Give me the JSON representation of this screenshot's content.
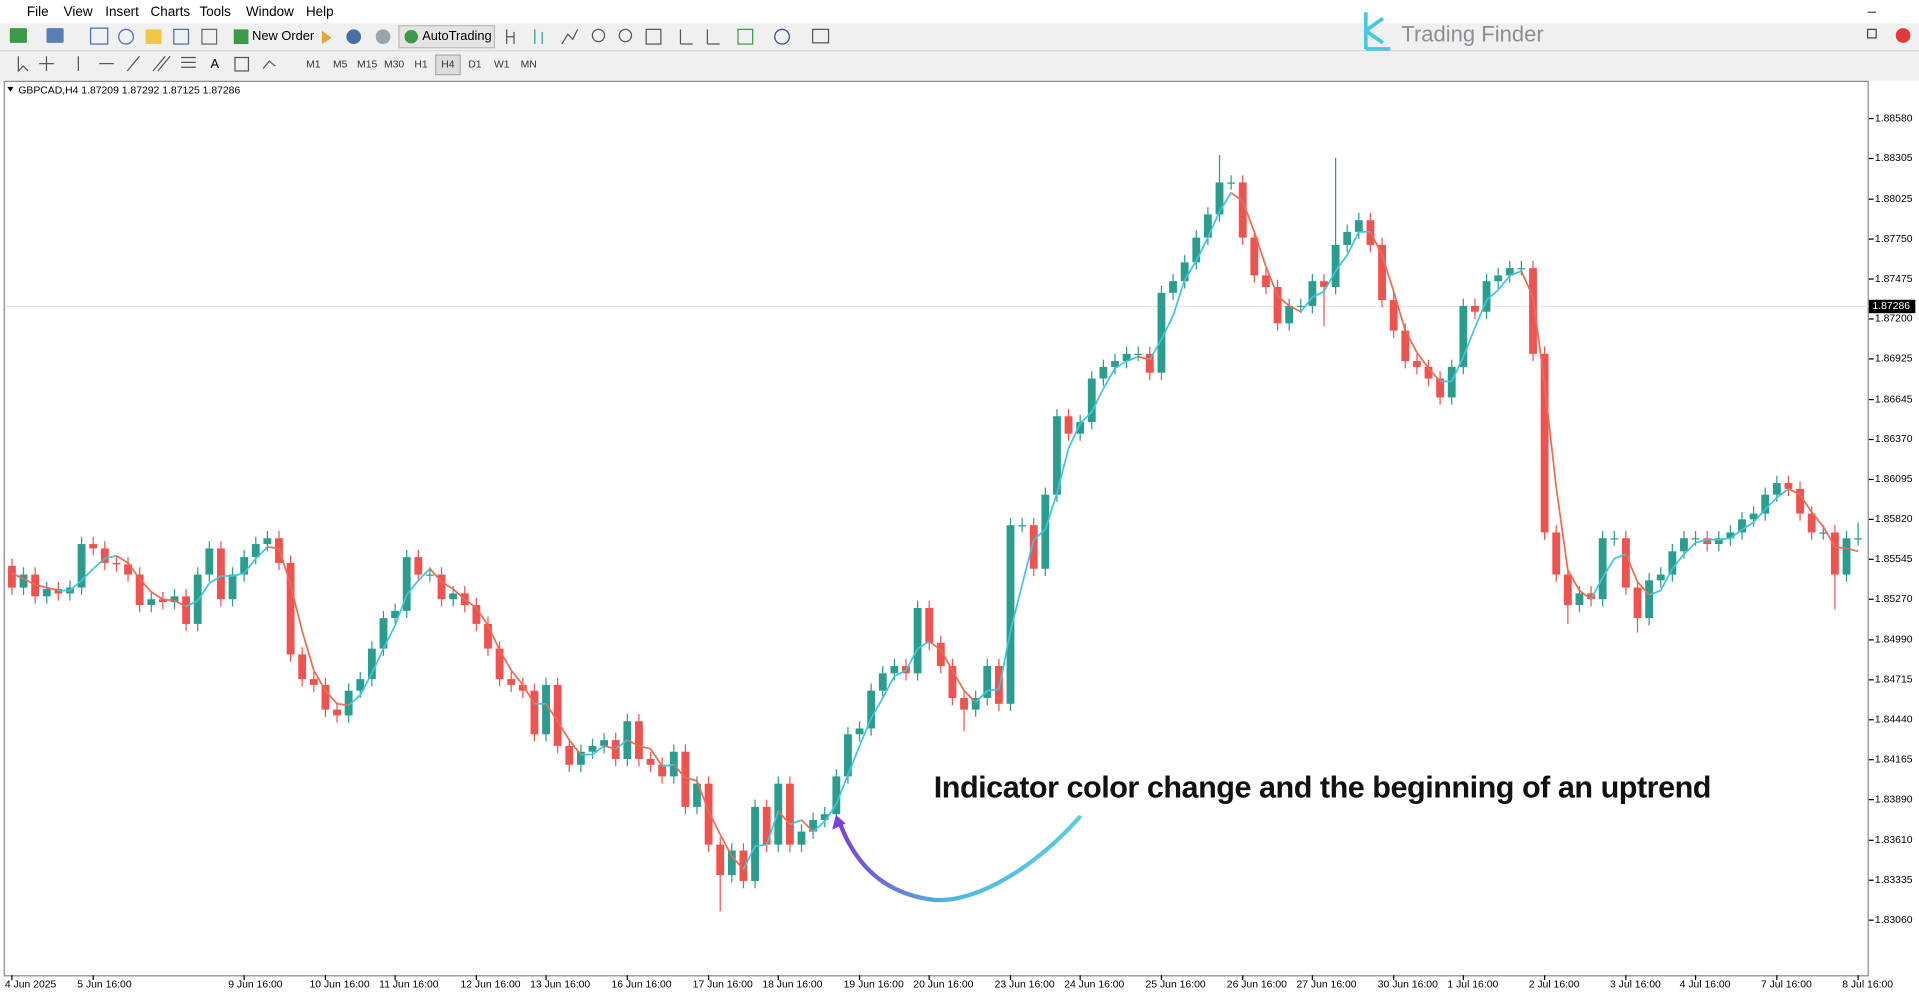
{
  "ui": {
    "menu": [
      "File",
      "View",
      "Insert",
      "Charts",
      "Tools",
      "Window",
      "Help"
    ],
    "new_order": "New Order",
    "auto_trading": "AutoTrading",
    "timeframes": [
      "M1",
      "M5",
      "M15",
      "M30",
      "H1",
      "H4",
      "D1",
      "W1",
      "MN"
    ],
    "logo": "Trading Finder"
  },
  "chart_data": {
    "type": "candlestick",
    "symbol": "GBPCAD,H4",
    "quote": {
      "open": 1.87209,
      "high": 1.87292,
      "low": 1.87125,
      "close": 1.87286
    },
    "annotation": "Indicator color change and the beginning of an uptrend",
    "up_color": "#2a9d8f",
    "down_color": "#ef5350",
    "grid": false,
    "ylim": [
      1.82681,
      1.88832
    ],
    "yticks": [
      {
        "value": 1.8858,
        "label": "1.88580"
      },
      {
        "value": 1.88305,
        "label": "1.88305"
      },
      {
        "value": 1.88025,
        "label": "1.88025"
      },
      {
        "value": 1.8775,
        "label": "1.87750"
      },
      {
        "value": 1.87475,
        "label": "1.87475"
      },
      {
        "value": 1.872,
        "label": "1.87200"
      },
      {
        "value": 1.86925,
        "label": "1.86925"
      },
      {
        "value": 1.86645,
        "label": "1.86645"
      },
      {
        "value": 1.8637,
        "label": "1.86370"
      },
      {
        "value": 1.86095,
        "label": "1.86095"
      },
      {
        "value": 1.8582,
        "label": "1.85820"
      },
      {
        "value": 1.85545,
        "label": "1.85545"
      },
      {
        "value": 1.8527,
        "label": "1.85270"
      },
      {
        "value": 1.8499,
        "label": "1.84990"
      },
      {
        "value": 1.84715,
        "label": "1.84715"
      },
      {
        "value": 1.8444,
        "label": "1.84440"
      },
      {
        "value": 1.84165,
        "label": "1.84165"
      },
      {
        "value": 1.8389,
        "label": "1.83890"
      },
      {
        "value": 1.8361,
        "label": "1.83610"
      },
      {
        "value": 1.83335,
        "label": "1.83335"
      },
      {
        "value": 1.8306,
        "label": "1.83060"
      }
    ],
    "categories": [
      "4 Jun 2025",
      null,
      null,
      null,
      null,
      null,
      null,
      "5 Jun 16:00",
      null,
      null,
      null,
      null,
      null,
      null,
      null,
      null,
      null,
      null,
      null,
      null,
      "9 Jun 16:00",
      null,
      null,
      null,
      null,
      null,
      null,
      "10 Jun 16:00",
      null,
      null,
      null,
      null,
      null,
      "11 Jun 16:00",
      null,
      null,
      null,
      null,
      null,
      null,
      "12 Jun 16:00",
      null,
      null,
      null,
      null,
      null,
      "13 Jun 16:00",
      null,
      null,
      null,
      null,
      null,
      null,
      "16 Jun 16:00",
      null,
      null,
      null,
      null,
      null,
      null,
      "17 Jun 16:00",
      null,
      null,
      null,
      null,
      null,
      "18 Jun 16:00",
      null,
      null,
      null,
      null,
      null,
      null,
      "19 Jun 16:00",
      null,
      null,
      null,
      null,
      null,
      "20 Jun 16:00",
      null,
      null,
      null,
      null,
      null,
      null,
      "23 Jun 16:00",
      null,
      null,
      null,
      null,
      null,
      "24 Jun 16:00",
      null,
      null,
      null,
      null,
      null,
      null,
      "25 Jun 16:00",
      null,
      null,
      null,
      null,
      null,
      null,
      "26 Jun 16:00",
      null,
      null,
      null,
      null,
      null,
      "27 Jun 16:00",
      null,
      null,
      null,
      null,
      null,
      null,
      "30 Jun 16:00",
      null,
      null,
      null,
      null,
      null,
      "1 Jul 16:00",
      null,
      null,
      null,
      null,
      null,
      null,
      "2 Jul 16:00",
      null,
      null,
      null,
      null,
      null,
      null,
      "3 Jul 16:00",
      null,
      null,
      null,
      null,
      null,
      "4 Jul 16:00",
      null,
      null,
      null,
      null,
      null,
      null,
      "7 Jul 16:00",
      null,
      null,
      null,
      null,
      null,
      null,
      "8 Jul 16:00"
    ],
    "open": [
      1.855,
      1.8535,
      1.8544,
      1.8529,
      1.8534,
      1.8531,
      1.8535,
      1.8565,
      1.8562,
      1.8552,
      1.8551,
      1.8544,
      1.8523,
      1.8527,
      1.8525,
      1.8529,
      1.851,
      1.8544,
      1.8562,
      1.8527,
      1.8544,
      1.8556,
      1.8565,
      1.8569,
      1.8552,
      1.8489,
      1.8472,
      1.8468,
      1.8451,
      1.8447,
      1.8464,
      1.8472,
      1.8493,
      1.8514,
      1.8519,
      1.8556,
      1.8544,
      1.8544,
      1.8527,
      1.8531,
      1.8523,
      1.851,
      1.8493,
      1.8472,
      1.8468,
      1.8464,
      1.8434,
      1.8468,
      1.8426,
      1.8413,
      1.8422,
      1.8426,
      1.843,
      1.8417,
      1.8443,
      1.8417,
      1.8413,
      1.8405,
      1.8422,
      1.8384,
      1.84,
      1.8358,
      1.8337,
      1.8354,
      1.8333,
      1.8384,
      1.8358,
      1.84,
      1.8358,
      1.8367,
      1.8375,
      1.8379,
      1.8405,
      1.8434,
      1.8438,
      1.8464,
      1.8476,
      1.8481,
      1.8476,
      1.8521,
      1.8497,
      1.8481,
      1.8459,
      1.8451,
      1.8459,
      1.8481,
      1.8455,
      1.8578,
      1.8578,
      1.8548,
      1.8599,
      1.8653,
      1.8641,
      1.8649,
      1.8679,
      1.8687,
      1.8691,
      1.8696,
      1.8696,
      1.8683,
      1.8738,
      1.8746,
      1.8759,
      1.8776,
      1.8792,
      1.8814,
      1.8814,
      1.8776,
      1.875,
      1.8742,
      1.8717,
      1.8729,
      1.8729,
      1.8746,
      1.8742,
      1.8771,
      1.878,
      1.8788,
      1.8771,
      1.8733,
      1.8712,
      1.8691,
      1.8687,
      1.8679,
      1.8666,
      1.8687,
      1.8729,
      1.8725,
      1.8746,
      1.875,
      1.8755,
      1.8755,
      1.8696,
      1.8573,
      1.8544,
      1.8523,
      1.8531,
      1.8527,
      1.8569,
      1.8569,
      1.8535,
      1.8514,
      1.854,
      1.8544,
      1.856,
      1.8569,
      1.8569,
      1.8565,
      1.8569,
      1.8573,
      1.8582,
      1.8586,
      1.8599,
      1.8607,
      1.8603,
      1.8586,
      1.8573,
      1.8573,
      1.8544,
      1.8569
    ],
    "high": [
      1.8555,
      1.8549,
      1.8549,
      1.8539,
      1.8539,
      1.854,
      1.857,
      1.857,
      1.8567,
      1.8557,
      1.8556,
      1.8549,
      1.8532,
      1.8532,
      1.8534,
      1.8534,
      1.8549,
      1.8567,
      1.8567,
      1.8549,
      1.8561,
      1.857,
      1.8574,
      1.8574,
      1.8557,
      1.8494,
      1.8477,
      1.8473,
      1.8456,
      1.8469,
      1.8477,
      1.8498,
      1.8519,
      1.8524,
      1.8561,
      1.8561,
      1.8549,
      1.8549,
      1.8536,
      1.8536,
      1.8528,
      1.8515,
      1.8498,
      1.8477,
      1.8473,
      1.8469,
      1.8473,
      1.8473,
      1.8431,
      1.8427,
      1.8431,
      1.8435,
      1.8435,
      1.8448,
      1.8448,
      1.8422,
      1.8418,
      1.8427,
      1.8427,
      1.8405,
      1.8405,
      1.8363,
      1.8359,
      1.8359,
      1.8389,
      1.8389,
      1.8405,
      1.8405,
      1.8372,
      1.838,
      1.8384,
      1.841,
      1.8439,
      1.8443,
      1.8469,
      1.8481,
      1.8486,
      1.8486,
      1.8526,
      1.8526,
      1.8502,
      1.8486,
      1.8464,
      1.8464,
      1.8486,
      1.8486,
      1.8583,
      1.8583,
      1.8583,
      1.8604,
      1.8658,
      1.8658,
      1.8654,
      1.8684,
      1.8692,
      1.8696,
      1.8701,
      1.8701,
      1.8701,
      1.8743,
      1.8751,
      1.8764,
      1.8781,
      1.8797,
      1.8833,
      1.8819,
      1.8819,
      1.8781,
      1.8755,
      1.8747,
      1.8734,
      1.8734,
      1.8751,
      1.8751,
      1.8831,
      1.8785,
      1.8793,
      1.8793,
      1.8776,
      1.8738,
      1.8717,
      1.8696,
      1.8692,
      1.8684,
      1.8692,
      1.8734,
      1.8734,
      1.8751,
      1.8755,
      1.876,
      1.876,
      1.876,
      1.8701,
      1.8578,
      1.8549,
      1.8536,
      1.8536,
      1.8574,
      1.8574,
      1.8574,
      1.854,
      1.8545,
      1.8549,
      1.8565,
      1.8574,
      1.8574,
      1.8574,
      1.8574,
      1.8578,
      1.8587,
      1.8591,
      1.8604,
      1.8612,
      1.8612,
      1.8608,
      1.8591,
      1.8578,
      1.8578,
      1.8574,
      1.858
    ],
    "low": [
      1.853,
      1.853,
      1.8524,
      1.8524,
      1.8526,
      1.8526,
      1.853,
      1.8557,
      1.8547,
      1.8546,
      1.8539,
      1.8518,
      1.8518,
      1.852,
      1.852,
      1.8505,
      1.8505,
      1.8539,
      1.8522,
      1.8522,
      1.8539,
      1.8551,
      1.856,
      1.8547,
      1.8484,
      1.8467,
      1.8463,
      1.8446,
      1.8442,
      1.8442,
      1.8459,
      1.8467,
      1.8488,
      1.8509,
      1.8514,
      1.8539,
      1.8539,
      1.8522,
      1.8522,
      1.8518,
      1.8505,
      1.8488,
      1.8467,
      1.8463,
      1.8459,
      1.8429,
      1.8429,
      1.8421,
      1.8408,
      1.8408,
      1.8417,
      1.8421,
      1.8412,
      1.8412,
      1.8412,
      1.8408,
      1.84,
      1.84,
      1.8379,
      1.8379,
      1.8353,
      1.8312,
      1.8332,
      1.8328,
      1.8328,
      1.8353,
      1.8353,
      1.8353,
      1.8353,
      1.8362,
      1.837,
      1.8374,
      1.84,
      1.8429,
      1.8433,
      1.8459,
      1.8471,
      1.8471,
      1.8471,
      1.8492,
      1.8476,
      1.8454,
      1.8436,
      1.8446,
      1.8454,
      1.845,
      1.845,
      1.8573,
      1.8543,
      1.8543,
      1.8594,
      1.8636,
      1.8636,
      1.8644,
      1.8674,
      1.8682,
      1.8686,
      1.8691,
      1.8678,
      1.8678,
      1.8733,
      1.8741,
      1.8754,
      1.8771,
      1.8787,
      1.8809,
      1.8771,
      1.8745,
      1.8737,
      1.8712,
      1.8712,
      1.8724,
      1.8724,
      1.8715,
      1.8737,
      1.8766,
      1.8775,
      1.8766,
      1.8728,
      1.8707,
      1.8686,
      1.8682,
      1.8674,
      1.8661,
      1.8661,
      1.8682,
      1.872,
      1.872,
      1.8741,
      1.8745,
      1.875,
      1.8691,
      1.8568,
      1.8539,
      1.851,
      1.8518,
      1.8522,
      1.8522,
      1.8564,
      1.853,
      1.8504,
      1.8509,
      1.8535,
      1.8539,
      1.8555,
      1.8564,
      1.856,
      1.856,
      1.8564,
      1.8568,
      1.8577,
      1.8581,
      1.8594,
      1.8598,
      1.8581,
      1.8568,
      1.8568,
      1.852,
      1.8539,
      1.8564
    ],
    "close": [
      1.8535,
      1.8544,
      1.8529,
      1.8534,
      1.8531,
      1.8535,
      1.8565,
      1.8562,
      1.8552,
      1.8551,
      1.8544,
      1.8523,
      1.8527,
      1.8525,
      1.8529,
      1.851,
      1.8544,
      1.8562,
      1.8527,
      1.8544,
      1.8556,
      1.8565,
      1.8569,
      1.8552,
      1.8489,
      1.8472,
      1.8468,
      1.8451,
      1.8447,
      1.8464,
      1.8472,
      1.8493,
      1.8514,
      1.8519,
      1.8556,
      1.8544,
      1.8544,
      1.8527,
      1.8531,
      1.8523,
      1.851,
      1.8493,
      1.8472,
      1.8468,
      1.8464,
      1.8434,
      1.8468,
      1.8426,
      1.8413,
      1.8422,
      1.8426,
      1.843,
      1.8417,
      1.8443,
      1.8417,
      1.8413,
      1.8405,
      1.8422,
      1.8384,
      1.84,
      1.8358,
      1.8337,
      1.8354,
      1.8333,
      1.8384,
      1.8358,
      1.84,
      1.8358,
      1.8367,
      1.8375,
      1.8379,
      1.8405,
      1.8434,
      1.8438,
      1.8464,
      1.8476,
      1.8481,
      1.8476,
      1.8521,
      1.8497,
      1.8481,
      1.8459,
      1.8451,
      1.8459,
      1.8481,
      1.8455,
      1.8578,
      1.8578,
      1.8548,
      1.8599,
      1.8653,
      1.8641,
      1.8649,
      1.8679,
      1.8687,
      1.8691,
      1.8696,
      1.8696,
      1.8683,
      1.8738,
      1.8746,
      1.8759,
      1.8776,
      1.8792,
      1.8814,
      1.8814,
      1.8776,
      1.875,
      1.8742,
      1.8717,
      1.8729,
      1.8729,
      1.8746,
      1.8742,
      1.8771,
      1.878,
      1.8788,
      1.8771,
      1.8733,
      1.8712,
      1.8691,
      1.8687,
      1.8679,
      1.8666,
      1.8687,
      1.8729,
      1.8725,
      1.8746,
      1.875,
      1.8755,
      1.8755,
      1.8696,
      1.8573,
      1.8544,
      1.8523,
      1.8531,
      1.8527,
      1.8569,
      1.8569,
      1.8535,
      1.8514,
      1.854,
      1.8544,
      1.856,
      1.8569,
      1.8569,
      1.8565,
      1.8569,
      1.8573,
      1.8582,
      1.8586,
      1.8599,
      1.8607,
      1.8603,
      1.8586,
      1.8573,
      1.8573,
      1.8544,
      1.8569,
      1.8569
    ],
    "indicator": {
      "up_color": "#3cc6df",
      "down_color": "#ee6a50",
      "values": [
        1.8545,
        1.8541,
        1.8537,
        1.8535,
        1.8533,
        1.8533,
        1.854,
        1.8548,
        1.8555,
        1.8557,
        1.8552,
        1.8541,
        1.8532,
        1.8527,
        1.8526,
        1.8522,
        1.8526,
        1.8538,
        1.8543,
        1.8543,
        1.8545,
        1.8555,
        1.8563,
        1.8562,
        1.8537,
        1.8505,
        1.8478,
        1.8464,
        1.8455,
        1.8454,
        1.8461,
        1.8476,
        1.8493,
        1.8509,
        1.853,
        1.854,
        1.8548,
        1.8539,
        1.8534,
        1.8527,
        1.8521,
        1.8509,
        1.8492,
        1.8478,
        1.8468,
        1.8455,
        1.8455,
        1.8443,
        1.843,
        1.842,
        1.842,
        1.8426,
        1.8424,
        1.843,
        1.8426,
        1.8424,
        1.8412,
        1.8413,
        1.8404,
        1.8402,
        1.8381,
        1.8365,
        1.835,
        1.8341,
        1.8357,
        1.8358,
        1.8381,
        1.8372,
        1.8375,
        1.8367,
        1.8374,
        1.8386,
        1.8406,
        1.8426,
        1.8445,
        1.8459,
        1.8474,
        1.8478,
        1.8493,
        1.8498,
        1.8492,
        1.8478,
        1.8464,
        1.8456,
        1.8464,
        1.8465,
        1.8505,
        1.8537,
        1.8568,
        1.8575,
        1.86,
        1.8631,
        1.8648,
        1.8656,
        1.8672,
        1.8686,
        1.8691,
        1.8694,
        1.8692,
        1.8706,
        1.8722,
        1.8747,
        1.876,
        1.8776,
        1.8794,
        1.8807,
        1.8801,
        1.878,
        1.8756,
        1.8736,
        1.8729,
        1.8725,
        1.8735,
        1.8739,
        1.8753,
        1.8764,
        1.878,
        1.878,
        1.8764,
        1.8739,
        1.8712,
        1.8697,
        1.8686,
        1.8677,
        1.8677,
        1.8694,
        1.8714,
        1.8733,
        1.874,
        1.875,
        1.8753,
        1.8735,
        1.8675,
        1.8604,
        1.8547,
        1.8533,
        1.8527,
        1.8542,
        1.8555,
        1.8558,
        1.8539,
        1.853,
        1.8533,
        1.8548,
        1.8558,
        1.8566,
        1.8568,
        1.8568,
        1.8569,
        1.8575,
        1.858,
        1.8589,
        1.8597,
        1.8603,
        1.8599,
        1.8587,
        1.8577,
        1.8563,
        1.8562,
        1.856
      ]
    }
  }
}
